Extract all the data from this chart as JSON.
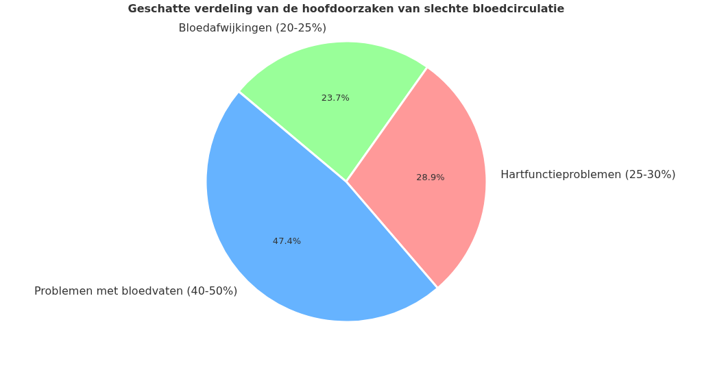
{
  "chart_data": {
    "type": "pie",
    "title": "Geschatte verdeling van de hoofdoorzaken van slechte bloedcirculatie",
    "categories": [
      "Problemen met bloedvaten (40-50%)",
      "Hartfunctieproblemen (25-30%)",
      "Bloedafwijkingen (20-25%)"
    ],
    "values": [
      47.4,
      28.9,
      23.7
    ],
    "colors": [
      "#66b3ff",
      "#ff9999",
      "#99ff99"
    ],
    "value_labels": [
      "47.4%",
      "28.9%",
      "23.7%"
    ],
    "legend": false
  }
}
